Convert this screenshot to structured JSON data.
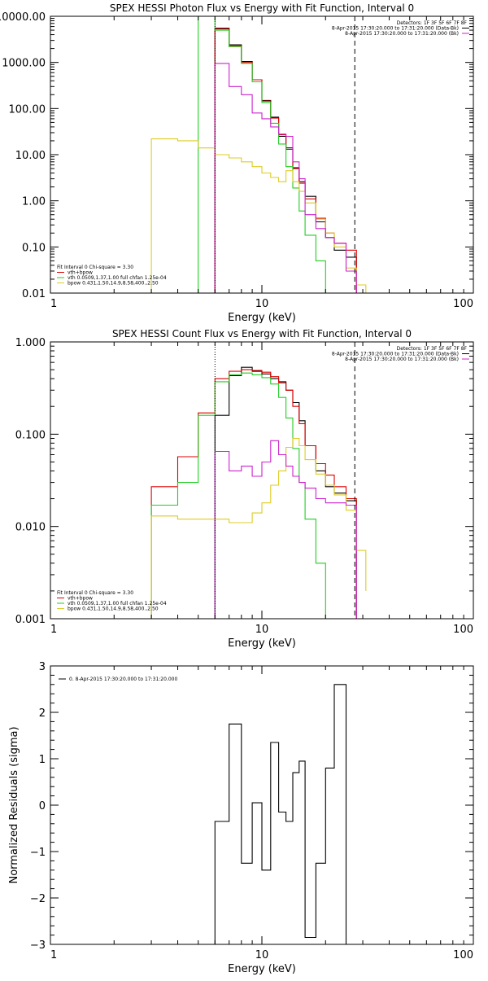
{
  "colors": {
    "data": "#000000",
    "total_fit": "#dd0000",
    "vth": "#22cc22",
    "bpow": "#ddcc22",
    "background": "#cc22cc",
    "background_purple": "#8800ff"
  },
  "chart_data": [
    {
      "type": "line",
      "title": "SPEX HESSI Photon Flux vs Energy with Fit Function, Interval 0",
      "xlabel": "Energy (keV)",
      "ylabel": "",
      "xscale": "log",
      "yscale": "log",
      "xlim": [
        1,
        100
      ],
      "ylim": [
        0.01,
        10000
      ],
      "xticks": [
        {
          "v": 1,
          "label": "1"
        },
        {
          "v": 10,
          "label": "10"
        },
        {
          "v": 100,
          "label": "100"
        }
      ],
      "yticks": [
        {
          "v": 0.01,
          "label": "0.01"
        },
        {
          "v": 0.1,
          "label": "0.10"
        },
        {
          "v": 1,
          "label": "1.00"
        },
        {
          "v": 10,
          "label": "10.00"
        },
        {
          "v": 100,
          "label": "100.00"
        },
        {
          "v": 1000,
          "label": "1000.00"
        },
        {
          "v": 10000,
          "label": "10000.00"
        }
      ],
      "header": [
        "Detectors: 1F 3F 5F 6F 7F 8F",
        "8-Apr-2015 17:30:20.000 to 17:31:20.000 (Data-Bk)",
        "8-Apr-2015 17:30:20.000 to 17:31:20.000 (Bk)"
      ],
      "header_colors": [
        "",
        "#000000",
        "#cc22cc"
      ],
      "legend": [
        "Fit Interval 0   Chi-square = 3.30",
        "vth+bpow",
        "vth 0.0509,1.37,1.00  full chfan 1.25e-04",
        "bpow 0.431,1.50,14.9,8.58,400.,2.50"
      ],
      "legend_colors": [
        "",
        "#dd0000",
        "#22cc22",
        "#ddcc22"
      ],
      "vlines": [
        {
          "x": 6.0,
          "style": "dotted"
        },
        {
          "x": 27.5,
          "style": "dashed"
        }
      ],
      "series": [
        {
          "name": "Data-Bk",
          "color": "#000000",
          "edges": [
            6.0,
            7.0,
            8.0,
            9.0,
            10.0,
            11.0,
            12.0,
            13.0,
            14.0,
            15.0,
            16.0,
            18.0,
            20.0,
            22.0,
            25.0,
            28.0
          ],
          "values": [
            5500,
            2400,
            1050,
            420,
            150,
            65,
            25,
            14,
            5.2,
            2.6,
            1.25,
            0.35,
            0.16,
            0.085,
            0.06
          ]
        },
        {
          "name": "vth+bpow",
          "color": "#dd0000",
          "edges": [
            6.0,
            7.0,
            8.0,
            9.0,
            10.0,
            11.0,
            12.0,
            13.0,
            14.0,
            15.0,
            16.0,
            18.0,
            20.0,
            22.0,
            25.0,
            28.0
          ],
          "values": [
            5300,
            2300,
            1000,
            420,
            145,
            62,
            27,
            13,
            5.0,
            2.4,
            1.1,
            0.42,
            0.2,
            0.12,
            0.085
          ]
        },
        {
          "name": "vth",
          "color": "#22cc22",
          "edges": [
            5.0,
            6.0,
            7.0,
            8.0,
            9.0,
            10.0,
            11.0,
            12.0,
            13.0,
            14.0,
            15.0,
            16.0,
            18.0,
            20.0,
            22.0
          ],
          "values": [
            10000,
            5000,
            2200,
            950,
            380,
            135,
            48,
            17,
            5.5,
            1.9,
            0.6,
            0.18,
            0.05,
            0.01
          ]
        },
        {
          "name": "bpow",
          "color": "#ddcc22",
          "edges": [
            3.0,
            4.0,
            5.0,
            6.0,
            7.0,
            8.0,
            9.0,
            10.0,
            11.0,
            12.0,
            13.0,
            14.0,
            15.0,
            16.0,
            18.0,
            20.0,
            22.0,
            25.0,
            28.0,
            31.0
          ],
          "values": [
            22,
            20,
            14,
            10,
            8.5,
            7,
            5.5,
            4,
            3.2,
            2.6,
            4.5,
            2.6,
            1.6,
            0.9,
            0.4,
            0.2,
            0.1,
            0.035,
            0.015
          ]
        },
        {
          "name": "Bk",
          "color": "#cc22cc",
          "edges": [
            6.0,
            7.0,
            8.0,
            9.0,
            10.0,
            11.0,
            12.0,
            13.0,
            14.0,
            15.0,
            16.0,
            18.0,
            20.0,
            22.0,
            25.0,
            28.0
          ],
          "values": [
            950,
            300,
            200,
            80,
            60,
            40,
            28,
            25,
            7,
            3,
            0.5,
            0.25,
            0.16,
            0.12,
            0.03
          ]
        }
      ]
    },
    {
      "type": "line",
      "title": "SPEX HESSI Count Flux vs Energy with Fit Function, Interval 0",
      "xlabel": "Energy (keV)",
      "ylabel": "",
      "xscale": "log",
      "yscale": "log",
      "xlim": [
        1,
        100
      ],
      "ylim": [
        0.001,
        1
      ],
      "xticks": [
        {
          "v": 1,
          "label": "1"
        },
        {
          "v": 10,
          "label": "10"
        },
        {
          "v": 100,
          "label": "100"
        }
      ],
      "yticks": [
        {
          "v": 0.001,
          "label": "0.001"
        },
        {
          "v": 0.01,
          "label": "0.010"
        },
        {
          "v": 0.1,
          "label": "0.100"
        },
        {
          "v": 1,
          "label": "1.000"
        }
      ],
      "header": [
        "Detectors: 1F 3F 5F 6F 7F 8F",
        "8-Apr-2015 17:30:20.000 to 17:31:20.000 (Data-Bk)",
        "8-Apr-2015 17:30:20.000 to 17:31:20.000 (Bk)"
      ],
      "header_colors": [
        "",
        "#000000",
        "#cc22cc"
      ],
      "legend": [
        "Fit Interval 0   Chi-square = 3.30",
        "vth+bpow",
        "vth 0.0509,1.37,1.00  full chfan 1.25e-04",
        "bpow 0.431,1.50,14.9,8.58,400.,2.50"
      ],
      "legend_colors": [
        "",
        "#dd0000",
        "#22cc22",
        "#ddcc22"
      ],
      "vlines": [
        {
          "x": 6.0,
          "style": "dotted"
        },
        {
          "x": 27.5,
          "style": "dashed"
        }
      ],
      "series": [
        {
          "name": "Data-Bk",
          "color": "#000000",
          "edges": [
            6.0,
            7.0,
            8.0,
            9.0,
            10.0,
            11.0,
            12.0,
            13.0,
            14.0,
            15.0,
            16.0,
            18.0,
            20.0,
            22.0,
            25.0,
            28.0
          ],
          "values": [
            0.16,
            0.43,
            0.53,
            0.48,
            0.45,
            0.4,
            0.37,
            0.3,
            0.22,
            0.14,
            0.075,
            0.04,
            0.027,
            0.023,
            0.019
          ]
        },
        {
          "name": "vth+bpow",
          "color": "#dd0000",
          "edges": [
            3.0,
            4.0,
            5.0,
            6.0,
            7.0,
            8.0,
            9.0,
            10.0,
            11.0,
            12.0,
            13.0,
            14.0,
            15.0,
            16.0,
            18.0,
            20.0,
            22.0,
            25.0,
            28.0
          ],
          "values": [
            0.027,
            0.057,
            0.17,
            0.4,
            0.48,
            0.5,
            0.49,
            0.47,
            0.42,
            0.36,
            0.3,
            0.2,
            0.13,
            0.075,
            0.048,
            0.036,
            0.027,
            0.02
          ]
        },
        {
          "name": "vth",
          "color": "#22cc22",
          "edges": [
            3.0,
            4.0,
            5.0,
            6.0,
            7.0,
            8.0,
            9.0,
            10.0,
            11.0,
            12.0,
            13.0,
            14.0,
            15.0,
            16.0,
            18.0,
            20.0,
            22.0
          ],
          "values": [
            0.017,
            0.03,
            0.16,
            0.37,
            0.44,
            0.46,
            0.44,
            0.41,
            0.35,
            0.25,
            0.15,
            0.07,
            0.03,
            0.012,
            0.004,
            0.001
          ]
        },
        {
          "name": "bpow",
          "color": "#ddcc22",
          "edges": [
            3.0,
            4.0,
            5.0,
            6.0,
            7.0,
            8.0,
            9.0,
            10.0,
            11.0,
            12.0,
            13.0,
            14.0,
            15.0,
            16.0,
            18.0,
            20.0,
            22.0,
            25.0,
            28.0,
            31.0
          ],
          "values": [
            0.013,
            0.012,
            0.012,
            0.012,
            0.011,
            0.011,
            0.014,
            0.018,
            0.028,
            0.04,
            0.072,
            0.09,
            0.075,
            0.053,
            0.037,
            0.028,
            0.022,
            0.015,
            0.0055,
            0.002
          ]
        },
        {
          "name": "Bk",
          "color": "#cc22cc",
          "edges": [
            6.0,
            7.0,
            8.0,
            9.0,
            10.0,
            11.0,
            12.0,
            13.0,
            14.0,
            15.0,
            16.0,
            18.0,
            20.0,
            22.0,
            25.0,
            28.0
          ],
          "values": [
            0.065,
            0.04,
            0.045,
            0.035,
            0.05,
            0.085,
            0.06,
            0.045,
            0.035,
            0.03,
            0.026,
            0.02,
            0.018,
            0.018,
            0.017
          ]
        }
      ]
    },
    {
      "type": "line",
      "title": "",
      "xlabel": "Energy (keV)",
      "ylabel": "Normalized Residuals (sigma)",
      "xscale": "log",
      "yscale": "linear",
      "xlim": [
        1,
        100
      ],
      "ylim": [
        -3,
        3
      ],
      "xticks": [
        {
          "v": 1,
          "label": "1"
        },
        {
          "v": 10,
          "label": "10"
        },
        {
          "v": 100,
          "label": "100"
        }
      ],
      "yticks": [
        {
          "v": -3,
          "label": "−3"
        },
        {
          "v": -2,
          "label": "−2"
        },
        {
          "v": -1,
          "label": "−1"
        },
        {
          "v": 0,
          "label": "0"
        },
        {
          "v": 1,
          "label": "1"
        },
        {
          "v": 2,
          "label": "2"
        },
        {
          "v": 3,
          "label": "3"
        }
      ],
      "legend": [
        "0. 8-Apr-2015 17:30:20.000 to 17:31:20.000"
      ],
      "legend_colors": [
        "#000000"
      ],
      "series": [
        {
          "name": "0. 8-Apr-2015 17:30:20.000 to 17:31:20.000",
          "color": "#000000",
          "edges": [
            6.0,
            7.0,
            8.0,
            9.0,
            10.0,
            11.0,
            12.0,
            13.0,
            14.0,
            15.0,
            16.0,
            18.0,
            20.0,
            22.0,
            25.0,
            28.0
          ],
          "values": [
            -0.35,
            1.75,
            -1.25,
            0.05,
            -1.4,
            1.35,
            -0.15,
            -0.35,
            0.7,
            0.95,
            -2.85,
            -1.25,
            0.8,
            2.6,
            -3.0
          ]
        }
      ]
    }
  ]
}
